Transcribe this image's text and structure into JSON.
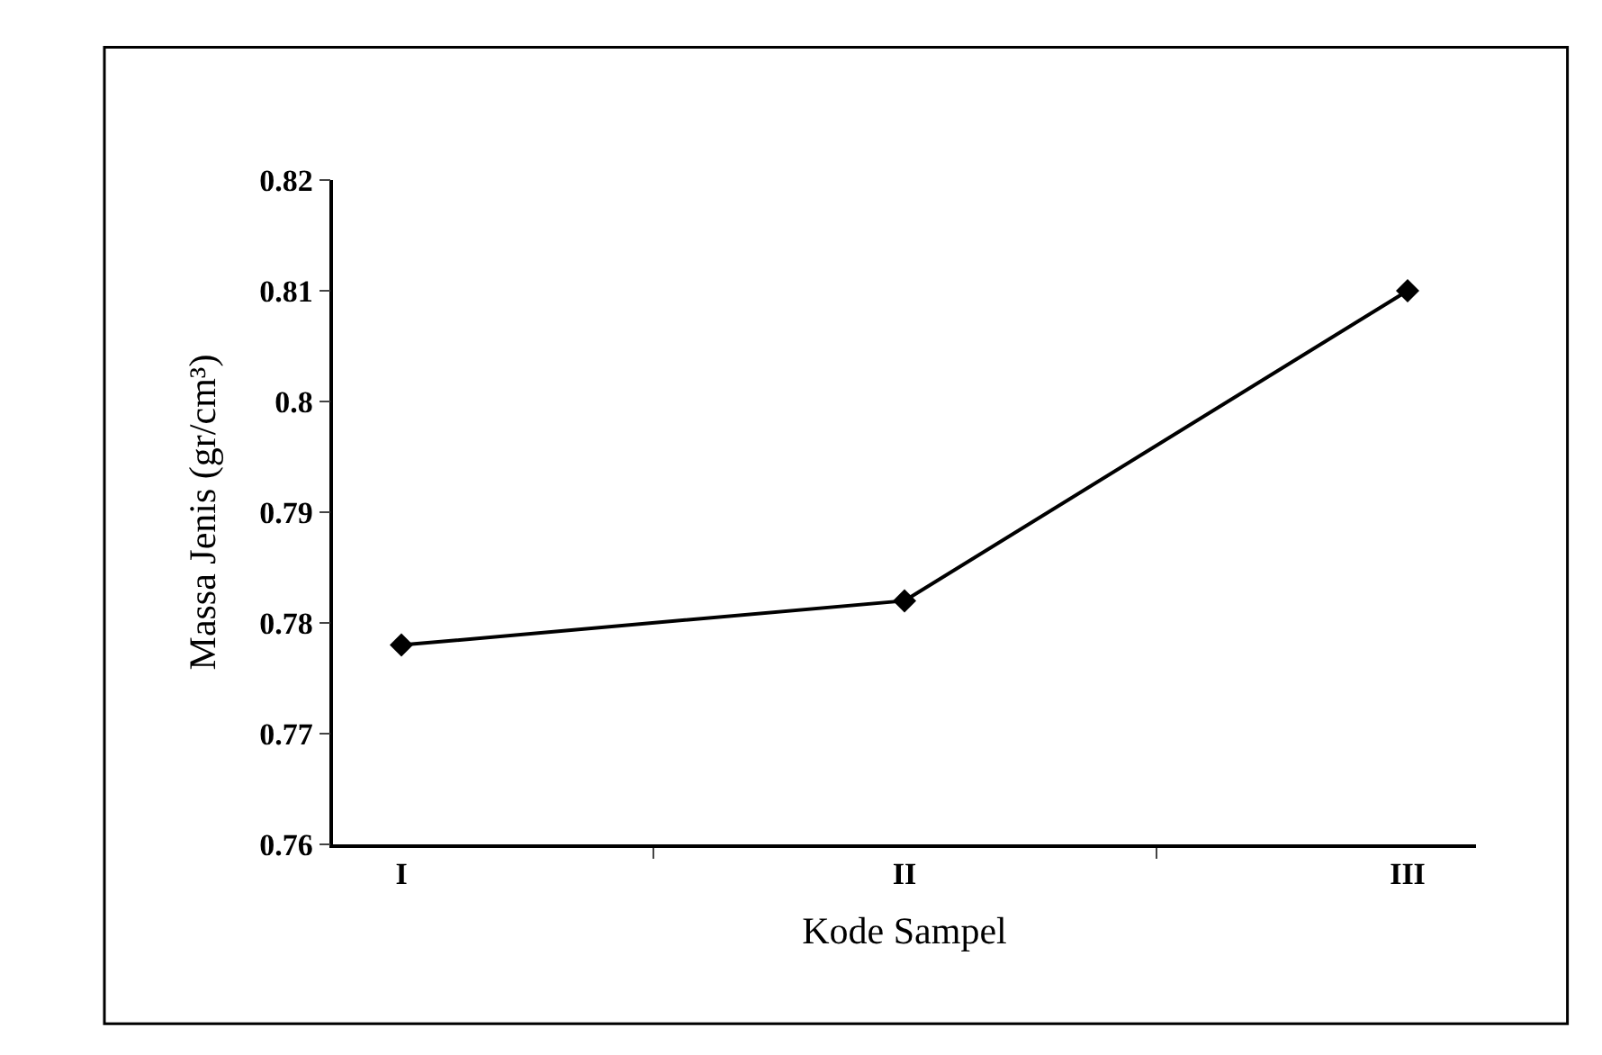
{
  "chart_data": {
    "type": "line",
    "xlabel": "Kode Sampel",
    "ylabel": "Massa Jenis (gr/cm³)",
    "categories": [
      "I",
      "II",
      "III"
    ],
    "series": [
      {
        "color": "#000000",
        "values": [
          0.778,
          0.782,
          0.81
        ]
      }
    ],
    "ylim": [
      0.76,
      0.82
    ],
    "yticks": [
      0.76,
      0.77,
      0.78,
      0.79,
      0.8,
      0.81,
      0.82
    ],
    "legend": false,
    "marker": "diamond",
    "line_style": "solid"
  }
}
